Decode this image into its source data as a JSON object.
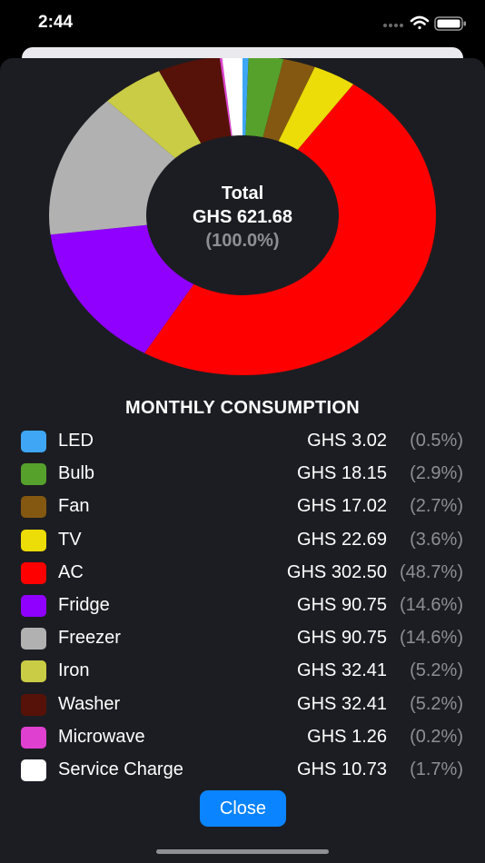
{
  "status_bar": {
    "time": "2:44"
  },
  "chart_data": {
    "type": "pie",
    "center_title": "Total",
    "center_value": "GHS 621.68",
    "center_pct": "(100.0%)",
    "legend_title": "MONTHLY CONSUMPTION",
    "slices": [
      {
        "label": "LED",
        "amount": "GHS 3.02",
        "pct_text": "(0.5%)",
        "value": 0.5,
        "color": "#3ea6f5"
      },
      {
        "label": "Bulb",
        "amount": "GHS 18.15",
        "pct_text": "(2.9%)",
        "value": 2.9,
        "color": "#56a12c"
      },
      {
        "label": "Fan",
        "amount": "GHS 17.02",
        "pct_text": "(2.7%)",
        "value": 2.7,
        "color": "#845810"
      },
      {
        "label": "TV",
        "amount": "GHS 22.69",
        "pct_text": "(3.6%)",
        "value": 3.6,
        "color": "#ecdc07"
      },
      {
        "label": "AC",
        "amount": "GHS 302.50",
        "pct_text": "(48.7%)",
        "value": 48.7,
        "color": "#ff0000"
      },
      {
        "label": "Fridge",
        "amount": "GHS 90.75",
        "pct_text": "(14.6%)",
        "value": 14.6,
        "color": "#8f00fe"
      },
      {
        "label": "Freezer",
        "amount": "GHS 90.75",
        "pct_text": "(14.6%)",
        "value": 14.6,
        "color": "#b1b1b1"
      },
      {
        "label": "Iron",
        "amount": "GHS 32.41",
        "pct_text": "(5.2%)",
        "value": 5.2,
        "color": "#c9cc44"
      },
      {
        "label": "Washer",
        "amount": "GHS 32.41",
        "pct_text": "(5.2%)",
        "value": 5.2,
        "color": "#561208"
      },
      {
        "label": "Microwave",
        "amount": "GHS 1.26",
        "pct_text": "(0.2%)",
        "value": 0.2,
        "color": "#e040d0"
      },
      {
        "label": "Service Charge",
        "amount": "GHS 10.73",
        "pct_text": "(1.7%)",
        "value": 1.7,
        "color": "#ffffff"
      }
    ]
  },
  "actions": {
    "close_label": "Close"
  },
  "colors": {
    "sheet_bg": "#1c1d22",
    "accent": "#0a84ff",
    "muted": "#8e8e93"
  }
}
